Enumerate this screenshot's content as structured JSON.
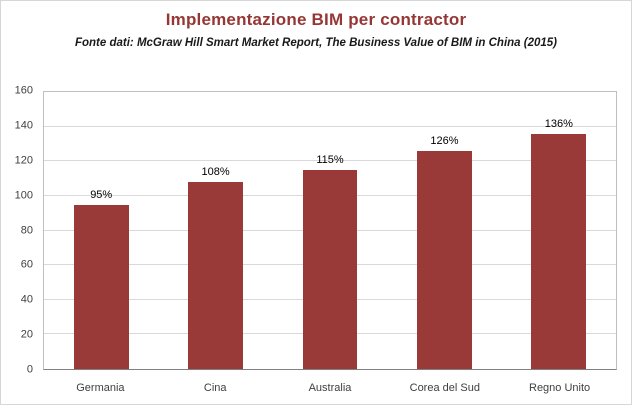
{
  "colors": {
    "bar": "#993a38",
    "title": "#953735",
    "subtitle": "#1a1a1a",
    "grid": "#d9d9d9",
    "axis": "#808080",
    "tick_text": "#404040"
  },
  "chart_data": {
    "type": "bar",
    "title": "Implementazione BIM per contractor",
    "subtitle": "Fonte dati: McGraw Hill Smart Market Report, The Business Value of BIM in China (2015)",
    "categories": [
      "Germania",
      "Cina",
      "Australia",
      "Corea del Sud",
      "Regno Unito"
    ],
    "values": [
      95,
      108,
      115,
      126,
      136
    ],
    "value_labels": [
      "95%",
      "108%",
      "115%",
      "126%",
      "136%"
    ],
    "xlabel": "",
    "ylabel": "",
    "ylim": [
      0,
      160
    ],
    "yticks": [
      0,
      20,
      40,
      60,
      80,
      100,
      120,
      140,
      160
    ],
    "grid": true,
    "legend": "none"
  }
}
